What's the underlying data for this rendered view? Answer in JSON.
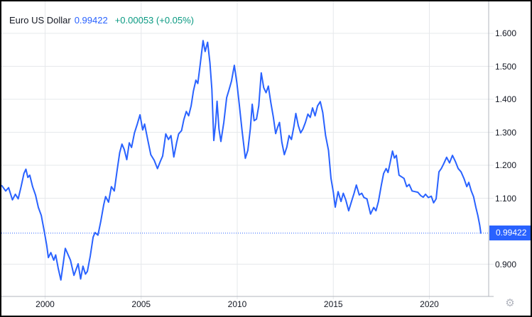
{
  "header": {
    "symbol_name": "Euro US Dollar",
    "last_price": "0.99422",
    "change": "+0.00053 (+0.05%)"
  },
  "colors": {
    "line": "#2962FF",
    "value_text": "#2962FF",
    "change_text": "#089981",
    "price_label_bg": "#2962FF",
    "price_label_text": "#FFFFFF",
    "grid": "#E6E8EB",
    "axis_line": "#B2B5BE",
    "axis_text": "#131722",
    "title_text": "#131722",
    "background": "#FFFFFF",
    "border": "#000000",
    "gear_icon": "#B2B5BE"
  },
  "icons": {
    "settings_gear": "⚙"
  },
  "chart_data": {
    "type": "line",
    "title": "Euro US Dollar",
    "xlabel": "",
    "ylabel": "",
    "grid": true,
    "legend": false,
    "y_axis_side": "right",
    "x_ticks": [
      2000,
      2005,
      2010,
      2015,
      2020
    ],
    "x_tick_labels": [
      "2000",
      "2005",
      "2010",
      "2015",
      "2020"
    ],
    "y_ticks": [
      1.6,
      1.5,
      1.4,
      1.3,
      1.2,
      1.1,
      0.9
    ],
    "y_tick_labels": [
      "1.600",
      "1.500",
      "1.400",
      "1.300",
      "1.200",
      "1.100",
      "0.900"
    ],
    "x_range_years": [
      1997.75,
      2023.1
    ],
    "ylim": [
      0.8,
      1.7
    ],
    "current_price": 0.99422,
    "current_price_label": "0.99422",
    "series": [
      {
        "name": "Euro US Dollar",
        "points": [
          [
            1997.75,
            1.138
          ],
          [
            1997.95,
            1.122
          ],
          [
            1998.1,
            1.132
          ],
          [
            1998.3,
            1.095
          ],
          [
            1998.45,
            1.112
          ],
          [
            1998.6,
            1.098
          ],
          [
            1998.75,
            1.135
          ],
          [
            1998.9,
            1.175
          ],
          [
            1999.0,
            1.188
          ],
          [
            1999.1,
            1.163
          ],
          [
            1999.2,
            1.17
          ],
          [
            1999.35,
            1.135
          ],
          [
            1999.5,
            1.11
          ],
          [
            1999.65,
            1.072
          ],
          [
            1999.8,
            1.048
          ],
          [
            1999.95,
            1.002
          ],
          [
            2000.08,
            0.958
          ],
          [
            2000.17,
            0.92
          ],
          [
            2000.3,
            0.935
          ],
          [
            2000.45,
            0.912
          ],
          [
            2000.55,
            0.928
          ],
          [
            2000.68,
            0.888
          ],
          [
            2000.82,
            0.852
          ],
          [
            2000.95,
            0.905
          ],
          [
            2001.05,
            0.948
          ],
          [
            2001.2,
            0.928
          ],
          [
            2001.32,
            0.912
          ],
          [
            2001.5,
            0.866
          ],
          [
            2001.62,
            0.885
          ],
          [
            2001.72,
            0.901
          ],
          [
            2001.85,
            0.855
          ],
          [
            2001.97,
            0.894
          ],
          [
            2002.1,
            0.87
          ],
          [
            2002.2,
            0.878
          ],
          [
            2002.35,
            0.925
          ],
          [
            2002.5,
            0.982
          ],
          [
            2002.6,
            0.996
          ],
          [
            2002.75,
            0.988
          ],
          [
            2002.9,
            1.03
          ],
          [
            2003.05,
            1.08
          ],
          [
            2003.15,
            1.105
          ],
          [
            2003.3,
            1.088
          ],
          [
            2003.45,
            1.135
          ],
          [
            2003.6,
            1.122
          ],
          [
            2003.75,
            1.185
          ],
          [
            2003.88,
            1.238
          ],
          [
            2004.0,
            1.264
          ],
          [
            2004.12,
            1.248
          ],
          [
            2004.25,
            1.217
          ],
          [
            2004.38,
            1.268
          ],
          [
            2004.5,
            1.254
          ],
          [
            2004.65,
            1.298
          ],
          [
            2004.8,
            1.325
          ],
          [
            2004.94,
            1.353
          ],
          [
            2005.08,
            1.307
          ],
          [
            2005.18,
            1.325
          ],
          [
            2005.35,
            1.275
          ],
          [
            2005.5,
            1.232
          ],
          [
            2005.68,
            1.215
          ],
          [
            2005.85,
            1.19
          ],
          [
            2006.0,
            1.212
          ],
          [
            2006.12,
            1.228
          ],
          [
            2006.28,
            1.295
          ],
          [
            2006.42,
            1.278
          ],
          [
            2006.55,
            1.29
          ],
          [
            2006.7,
            1.225
          ],
          [
            2006.85,
            1.27
          ],
          [
            2006.95,
            1.295
          ],
          [
            2007.1,
            1.305
          ],
          [
            2007.22,
            1.338
          ],
          [
            2007.35,
            1.363
          ],
          [
            2007.47,
            1.35
          ],
          [
            2007.6,
            1.38
          ],
          [
            2007.72,
            1.425
          ],
          [
            2007.85,
            1.458
          ],
          [
            2007.95,
            1.448
          ],
          [
            2008.08,
            1.51
          ],
          [
            2008.22,
            1.578
          ],
          [
            2008.33,
            1.545
          ],
          [
            2008.46,
            1.573
          ],
          [
            2008.58,
            1.51
          ],
          [
            2008.68,
            1.43
          ],
          [
            2008.78,
            1.275
          ],
          [
            2008.88,
            1.33
          ],
          [
            2008.95,
            1.394
          ],
          [
            2009.05,
            1.31
          ],
          [
            2009.15,
            1.272
          ],
          [
            2009.3,
            1.33
          ],
          [
            2009.45,
            1.405
          ],
          [
            2009.58,
            1.43
          ],
          [
            2009.7,
            1.455
          ],
          [
            2009.85,
            1.503
          ],
          [
            2009.98,
            1.45
          ],
          [
            2010.1,
            1.388
          ],
          [
            2010.25,
            1.305
          ],
          [
            2010.42,
            1.221
          ],
          [
            2010.55,
            1.245
          ],
          [
            2010.68,
            1.31
          ],
          [
            2010.78,
            1.385
          ],
          [
            2010.88,
            1.335
          ],
          [
            2011.0,
            1.34
          ],
          [
            2011.12,
            1.38
          ],
          [
            2011.25,
            1.48
          ],
          [
            2011.38,
            1.435
          ],
          [
            2011.5,
            1.42
          ],
          [
            2011.62,
            1.44
          ],
          [
            2011.75,
            1.39
          ],
          [
            2011.88,
            1.345
          ],
          [
            2012.0,
            1.296
          ],
          [
            2012.1,
            1.315
          ],
          [
            2012.2,
            1.33
          ],
          [
            2012.32,
            1.27
          ],
          [
            2012.45,
            1.232
          ],
          [
            2012.58,
            1.255
          ],
          [
            2012.7,
            1.29
          ],
          [
            2012.82,
            1.278
          ],
          [
            2012.95,
            1.318
          ],
          [
            2013.05,
            1.357
          ],
          [
            2013.18,
            1.32
          ],
          [
            2013.3,
            1.298
          ],
          [
            2013.42,
            1.31
          ],
          [
            2013.55,
            1.33
          ],
          [
            2013.68,
            1.355
          ],
          [
            2013.8,
            1.345
          ],
          [
            2013.92,
            1.374
          ],
          [
            2014.05,
            1.35
          ],
          [
            2014.18,
            1.38
          ],
          [
            2014.32,
            1.393
          ],
          [
            2014.45,
            1.36
          ],
          [
            2014.6,
            1.29
          ],
          [
            2014.75,
            1.245
          ],
          [
            2014.88,
            1.16
          ],
          [
            2015.0,
            1.118
          ],
          [
            2015.1,
            1.073
          ],
          [
            2015.25,
            1.12
          ],
          [
            2015.4,
            1.09
          ],
          [
            2015.52,
            1.115
          ],
          [
            2015.65,
            1.095
          ],
          [
            2015.8,
            1.062
          ],
          [
            2015.95,
            1.09
          ],
          [
            2016.08,
            1.115
          ],
          [
            2016.2,
            1.14
          ],
          [
            2016.35,
            1.11
          ],
          [
            2016.48,
            1.115
          ],
          [
            2016.6,
            1.102
          ],
          [
            2016.75,
            1.098
          ],
          [
            2016.94,
            1.052
          ],
          [
            2017.1,
            1.072
          ],
          [
            2017.22,
            1.062
          ],
          [
            2017.35,
            1.09
          ],
          [
            2017.5,
            1.14
          ],
          [
            2017.62,
            1.175
          ],
          [
            2017.75,
            1.19
          ],
          [
            2017.85,
            1.178
          ],
          [
            2017.95,
            1.205
          ],
          [
            2018.08,
            1.243
          ],
          [
            2018.18,
            1.222
          ],
          [
            2018.28,
            1.23
          ],
          [
            2018.42,
            1.17
          ],
          [
            2018.55,
            1.165
          ],
          [
            2018.68,
            1.16
          ],
          [
            2018.82,
            1.135
          ],
          [
            2018.95,
            1.142
          ],
          [
            2019.1,
            1.122
          ],
          [
            2019.25,
            1.12
          ],
          [
            2019.4,
            1.118
          ],
          [
            2019.55,
            1.108
          ],
          [
            2019.68,
            1.103
          ],
          [
            2019.8,
            1.112
          ],
          [
            2019.95,
            1.102
          ],
          [
            2020.1,
            1.106
          ],
          [
            2020.22,
            1.086
          ],
          [
            2020.35,
            1.098
          ],
          [
            2020.5,
            1.18
          ],
          [
            2020.62,
            1.19
          ],
          [
            2020.75,
            1.205
          ],
          [
            2020.9,
            1.224
          ],
          [
            2021.05,
            1.207
          ],
          [
            2021.2,
            1.23
          ],
          [
            2021.35,
            1.212
          ],
          [
            2021.5,
            1.19
          ],
          [
            2021.65,
            1.18
          ],
          [
            2021.8,
            1.16
          ],
          [
            2021.95,
            1.135
          ],
          [
            2022.05,
            1.148
          ],
          [
            2022.18,
            1.122
          ],
          [
            2022.3,
            1.105
          ],
          [
            2022.42,
            1.072
          ],
          [
            2022.52,
            1.048
          ],
          [
            2022.62,
            1.018
          ],
          [
            2022.68,
            0.994
          ]
        ]
      }
    ]
  }
}
